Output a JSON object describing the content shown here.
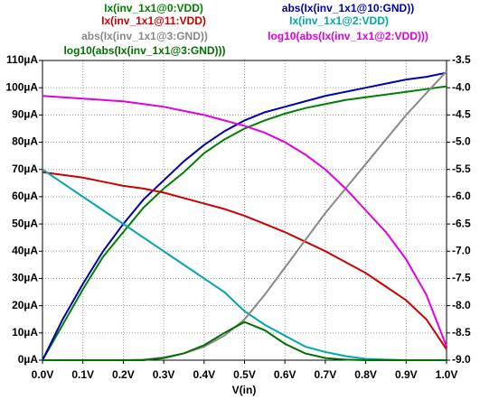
{
  "chart_data": {
    "type": "line",
    "x_label": "V(in)",
    "x": [
      0,
      0.05,
      0.1,
      0.15,
      0.2,
      0.25,
      0.3,
      0.35,
      0.4,
      0.45,
      0.5,
      0.55,
      0.6,
      0.65,
      0.7,
      0.75,
      0.8,
      0.85,
      0.9,
      0.95,
      1.0
    ],
    "xlim": [
      0,
      1.0
    ],
    "xticks": [
      {
        "value": 0,
        "label": "0.0V"
      },
      {
        "value": 0.1,
        "label": "0.1V"
      },
      {
        "value": 0.2,
        "label": "0.2V"
      },
      {
        "value": 0.3,
        "label": "0.3V"
      },
      {
        "value": 0.4,
        "label": "0.4V"
      },
      {
        "value": 0.5,
        "label": "0.5V"
      },
      {
        "value": 0.6,
        "label": "0.6V"
      },
      {
        "value": 0.7,
        "label": "0.7V"
      },
      {
        "value": 0.8,
        "label": "0.8V"
      },
      {
        "value": 0.9,
        "label": "0.9V"
      },
      {
        "value": 1.0,
        "label": "1.0V"
      }
    ],
    "ylim": [
      0,
      110
    ],
    "yticks": [
      {
        "value": 0,
        "label": "0µA"
      },
      {
        "value": 10,
        "label": "10µA"
      },
      {
        "value": 20,
        "label": "20µA"
      },
      {
        "value": 30,
        "label": "30µA"
      },
      {
        "value": 40,
        "label": "40µA"
      },
      {
        "value": 50,
        "label": "50µA"
      },
      {
        "value": 60,
        "label": "60µA"
      },
      {
        "value": 70,
        "label": "70µA"
      },
      {
        "value": 80,
        "label": "80µA"
      },
      {
        "value": 90,
        "label": "90µA"
      },
      {
        "value": 100,
        "label": "100µA"
      },
      {
        "value": 110,
        "label": "110µA"
      }
    ],
    "y2lim": [
      -9.0,
      -3.5
    ],
    "y2ticks": [
      {
        "value": -9.0,
        "label": "-9.0"
      },
      -8.5,
      {
        "value": -8.0,
        "label": "-8.0"
      },
      -7.5,
      {
        "value": -7.0,
        "label": "-7.0"
      },
      -6.5,
      {
        "value": -6.0,
        "label": "-6.0"
      },
      -5.5,
      {
        "value": -5.0,
        "label": "-5.0"
      },
      -4.5,
      {
        "value": -4.0,
        "label": "-4.0"
      },
      -3.5
    ],
    "grid": true,
    "series": [
      {
        "name": "Ix(inv_1x1@0:VDD)",
        "color": "#008000",
        "values": [
          0,
          13,
          26,
          38,
          47,
          56,
          63,
          69,
          76,
          81,
          85,
          88,
          90.5,
          92.5,
          94,
          95.5,
          96.5,
          97.5,
          98.5,
          99.5,
          100.5
        ]
      },
      {
        "name": "abs(Ix(inv_1x1@10:GND))",
        "color": "#0000b0",
        "values": [
          0,
          15,
          28,
          40,
          50,
          59,
          66,
          73,
          79,
          84,
          88,
          91,
          93,
          95,
          97,
          98.5,
          100,
          101.5,
          103,
          104,
          105.5
        ]
      },
      {
        "name": "Ix(inv_1x1@11:VDD)",
        "color": "#cc0000",
        "values": [
          69,
          68,
          67,
          65.5,
          64,
          63,
          61.5,
          59.5,
          57.5,
          55.5,
          53,
          50,
          47,
          43.5,
          40,
          36,
          32,
          27,
          22,
          15,
          4
        ]
      },
      {
        "name": "Ix(inv_1x1@2:VDD)",
        "color": "#00a8a8",
        "values": [
          70,
          65,
          60,
          55,
          50,
          45,
          40,
          35,
          30,
          25,
          18,
          13,
          9,
          5,
          3,
          1.5,
          0.5,
          0.2,
          0,
          0,
          0
        ]
      },
      {
        "name": "abs(Ix(inv_1x1@3:GND))",
        "color": "#888888",
        "values": [
          0,
          0,
          0,
          0,
          0,
          0.2,
          1,
          2.5,
          5,
          9,
          15,
          24,
          34,
          44,
          54,
          63,
          72,
          81,
          90,
          98,
          106
        ]
      },
      {
        "name": "log10(abs(Ix(inv_1x1@2:VDD)))",
        "color": "#e000e0",
        "axis": "y2",
        "values": [
          -4.15,
          -4.175,
          -4.2,
          -4.225,
          -4.25,
          -4.3,
          -4.35,
          -4.425,
          -4.5,
          -4.6,
          -4.7,
          -4.825,
          -5,
          -5.225,
          -5.5,
          -5.85,
          -6.25,
          -6.65,
          -7.15,
          -7.8,
          -8.75
        ]
      },
      {
        "name": "log10(abs(Ix(inv_1x1@3:GND)))",
        "color": "#007000",
        "axis": "y2",
        "values": [
          -9,
          -9,
          -9,
          -9,
          -9,
          -9,
          -8.96,
          -8.875,
          -8.725,
          -8.5,
          -8.3,
          -8.45,
          -8.7,
          -8.875,
          -8.96,
          -8.99,
          -9,
          -9,
          -9,
          -9,
          -9
        ]
      }
    ]
  }
}
